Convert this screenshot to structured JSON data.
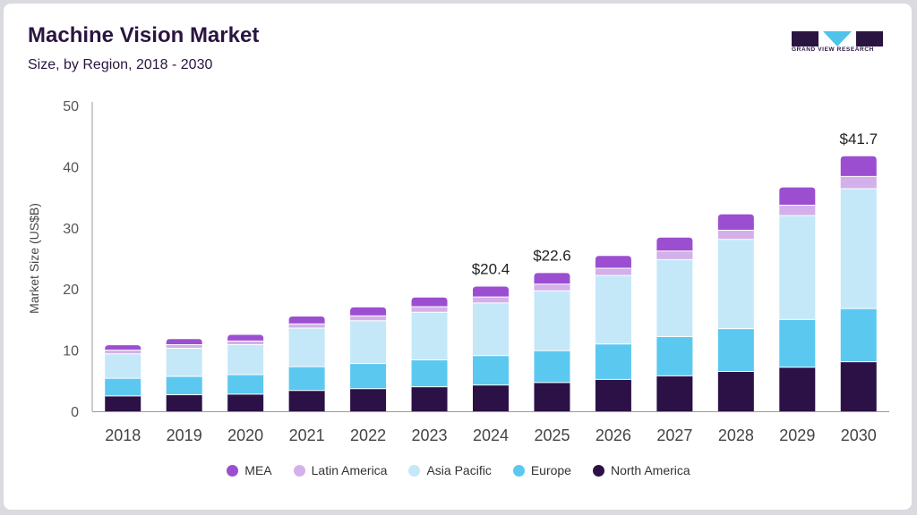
{
  "title": "Machine Vision Market",
  "subtitle": "Size, by Region, 2018 - 2030",
  "brand": {
    "name": "GRAND VIEW RESEARCH",
    "color": "#2a1540",
    "accent": "#4fc3e8"
  },
  "chart_data": {
    "type": "bar",
    "stacked": true,
    "ylabel": "Market Size (US$B)",
    "xlabel": "",
    "ylim": [
      0,
      50
    ],
    "yticks": [
      0,
      10,
      20,
      30,
      40,
      50
    ],
    "categories": [
      "2018",
      "2019",
      "2020",
      "2021",
      "2022",
      "2023",
      "2024",
      "2025",
      "2026",
      "2027",
      "2028",
      "2029",
      "2030"
    ],
    "series": [
      {
        "name": "North America",
        "color": "#2c1147",
        "values": [
          2.5,
          2.7,
          2.8,
          3.4,
          3.7,
          4.0,
          4.3,
          4.7,
          5.2,
          5.8,
          6.5,
          7.2,
          8.1
        ]
      },
      {
        "name": "Europe",
        "color": "#5bc8f0",
        "values": [
          2.9,
          3.0,
          3.2,
          3.9,
          4.1,
          4.4,
          4.8,
          5.2,
          5.8,
          6.4,
          7.0,
          7.8,
          8.7
        ]
      },
      {
        "name": "Asia Pacific",
        "color": "#c4e8f8",
        "values": [
          4.0,
          4.6,
          4.9,
          6.3,
          7.0,
          7.8,
          8.6,
          9.8,
          11.2,
          12.6,
          14.6,
          17.0,
          19.6
        ]
      },
      {
        "name": "Latin America",
        "color": "#d4b0ea",
        "values": [
          0.6,
          0.6,
          0.6,
          0.7,
          0.8,
          0.9,
          1.0,
          1.1,
          1.2,
          1.4,
          1.5,
          1.7,
          2.0
        ]
      },
      {
        "name": "MEA",
        "color": "#9b4fd0",
        "values": [
          0.8,
          0.9,
          1.0,
          1.2,
          1.4,
          1.5,
          1.7,
          1.8,
          2.0,
          2.2,
          2.6,
          2.9,
          3.3
        ]
      }
    ],
    "annotations": [
      {
        "category": "2024",
        "label": "$20.4",
        "value": 20.4
      },
      {
        "category": "2025",
        "label": "$22.6",
        "value": 22.6
      },
      {
        "category": "2030",
        "label": "$41.7",
        "value": 41.7
      }
    ],
    "legend": {
      "position": "bottom",
      "order": [
        "MEA",
        "Latin America",
        "Asia Pacific",
        "Europe",
        "North America"
      ]
    },
    "grid": false
  }
}
